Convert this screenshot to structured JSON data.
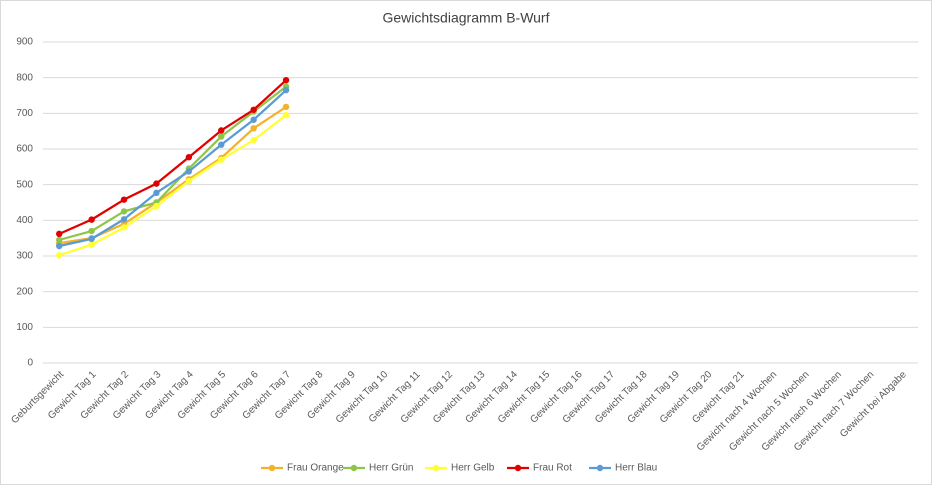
{
  "chart_data": {
    "type": "line",
    "title": "Gewichtsdiagramm B-Wurf",
    "categories": [
      "Geburtsgewicht",
      "Gewicht Tag 1",
      "Gewicht Tag 2",
      "Gewicht Tag 3",
      "Gewicht Tag 4",
      "Gewicht Tag 5",
      "Gewicht Tag 6",
      "Gewicht Tag 7",
      "Gewicht Tag 8",
      "Gewicht Tag 9",
      "Gewicht Tag 10",
      "Gewicht Tag 11",
      "Gewicht Tag 12",
      "Gewicht Tag 13",
      "Gewicht Tag 14",
      "Gewicht Tag 15",
      "Gewicht Tag 16",
      "Gewicht Tag 17",
      "Gewicht Tag 18",
      "Gewicht Tag 19",
      "Gewicht Tag 20",
      "Gewicht Tag 21",
      "Gewicht nach 4 Wochen",
      "Gewicht nach 5 Wochen",
      "Gewicht nach 6 Wochen",
      "Gewicht nach 7 Wochen",
      "Gewicht bei Abgabe"
    ],
    "series": [
      {
        "name": "Frau Orange",
        "color": "#f4b22b",
        "values": [
          336,
          350,
          390,
          450,
          515,
          575,
          658,
          718,
          null,
          null,
          null,
          null,
          null,
          null,
          null,
          null,
          null,
          null,
          null,
          null,
          null,
          null,
          null,
          null,
          null,
          null,
          null
        ]
      },
      {
        "name": "Herr Grün",
        "color": "#8dc64b",
        "values": [
          345,
          370,
          425,
          450,
          545,
          635,
          705,
          775,
          null,
          null,
          null,
          null,
          null,
          null,
          null,
          null,
          null,
          null,
          null,
          null,
          null,
          null,
          null,
          null,
          null,
          null,
          null
        ]
      },
      {
        "name": "Herr Gelb",
        "color": "#ffff33",
        "values": [
          302,
          332,
          380,
          440,
          510,
          570,
          625,
          695,
          null,
          null,
          null,
          null,
          null,
          null,
          null,
          null,
          null,
          null,
          null,
          null,
          null,
          null,
          null,
          null,
          null,
          null,
          null
        ]
      },
      {
        "name": "Frau Rot",
        "color": "#e00000",
        "values": [
          362,
          402,
          458,
          503,
          577,
          652,
          710,
          793,
          null,
          null,
          null,
          null,
          null,
          null,
          null,
          null,
          null,
          null,
          null,
          null,
          null,
          null,
          null,
          null,
          null,
          null,
          null
        ]
      },
      {
        "name": "Herr Blau",
        "color": "#5b9bd5",
        "values": [
          328,
          348,
          403,
          477,
          537,
          612,
          682,
          765,
          null,
          null,
          null,
          null,
          null,
          null,
          null,
          null,
          null,
          null,
          null,
          null,
          null,
          null,
          null,
          null,
          null,
          null,
          null
        ]
      }
    ],
    "ylim": [
      0,
      900
    ],
    "yticks": [
      0,
      100,
      200,
      300,
      400,
      500,
      600,
      700,
      800,
      900
    ],
    "grid": true,
    "legend": "bottom"
  }
}
